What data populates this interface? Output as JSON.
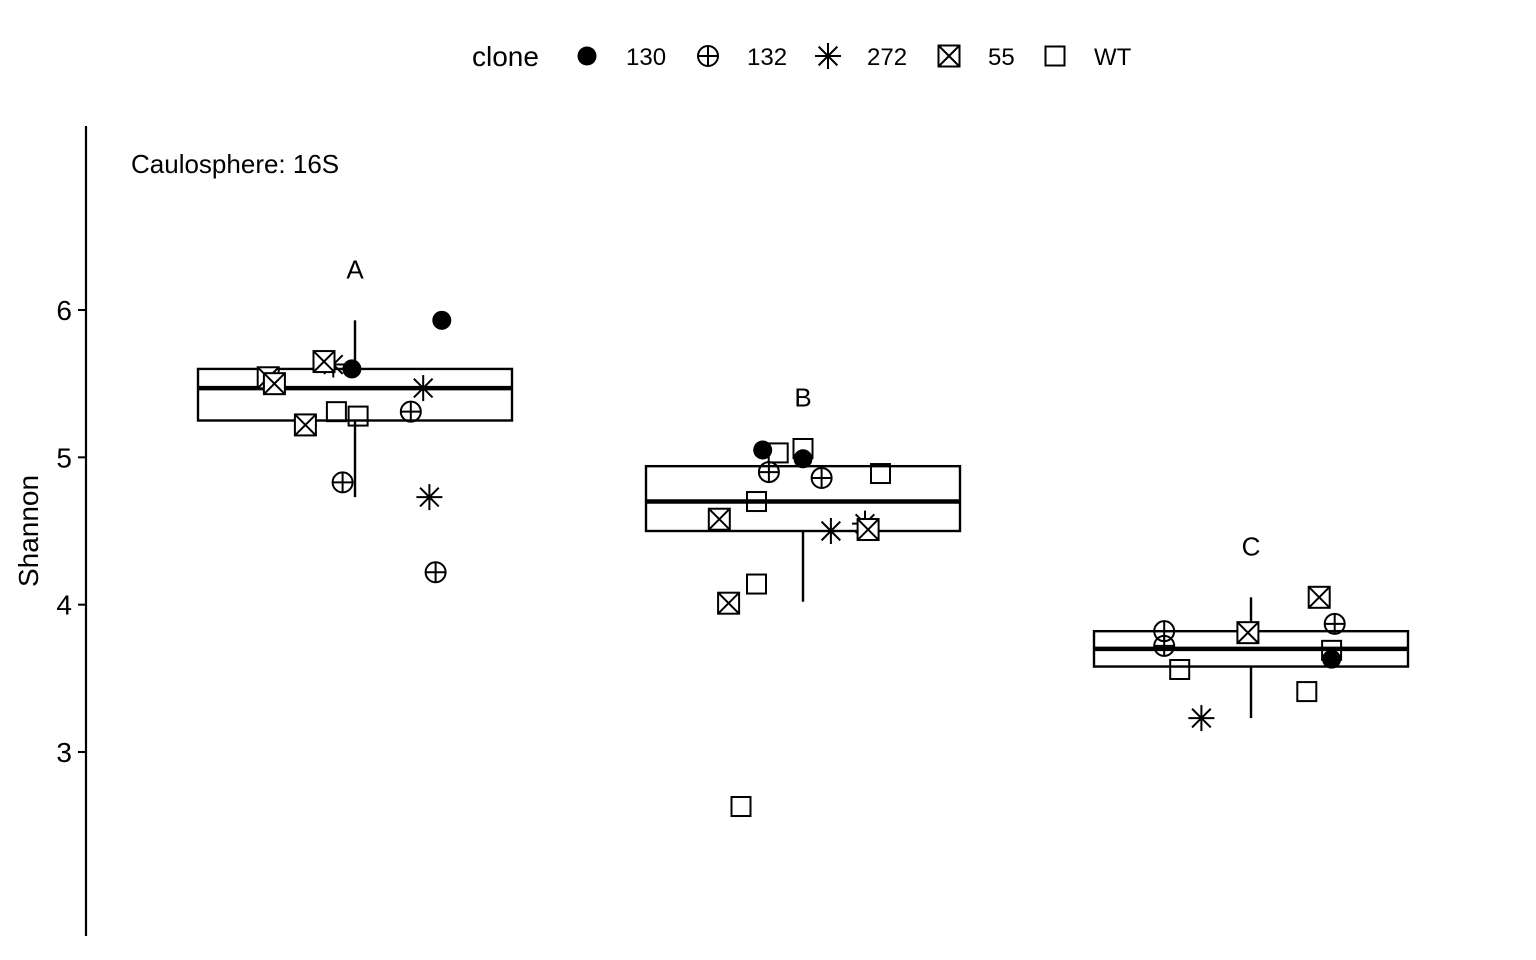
{
  "chart_data": {
    "type": "box",
    "title": "",
    "panel_label": "Caulosphere: 16S",
    "xlabel": "",
    "ylabel": "Shannon",
    "ylim": [
      1.9,
      7.2
    ],
    "yticks": [
      3,
      4,
      5,
      6
    ],
    "x_axis_shown": false,
    "grid": false,
    "legend": {
      "title": "clone",
      "position": "top",
      "entries": [
        {
          "label": "130",
          "shape": "filled-circle"
        },
        {
          "label": "132",
          "shape": "circle-plus"
        },
        {
          "label": "272",
          "shape": "asterisk"
        },
        {
          "label": "55",
          "shape": "square-x"
        },
        {
          "label": "WT",
          "shape": "open-square"
        }
      ]
    },
    "groups": [
      {
        "letter": "A",
        "box": {
          "q1": 5.25,
          "median": 5.47,
          "q3": 5.6,
          "whisker_low": 4.73,
          "whisker_high": 5.93
        },
        "points": [
          {
            "clone": "130",
            "y": 5.93,
            "jitter": 0.28
          },
          {
            "clone": "130",
            "y": 5.65,
            "jitter": -0.1
          },
          {
            "clone": "130",
            "y": 5.6,
            "jitter": -0.01
          },
          {
            "clone": "132",
            "y": 5.31,
            "jitter": 0.18
          },
          {
            "clone": "132",
            "y": 4.83,
            "jitter": -0.04
          },
          {
            "clone": "132",
            "y": 4.22,
            "jitter": 0.26
          },
          {
            "clone": "272",
            "y": 5.63,
            "jitter": -0.07
          },
          {
            "clone": "272",
            "y": 5.47,
            "jitter": 0.22
          },
          {
            "clone": "272",
            "y": 4.73,
            "jitter": 0.24
          },
          {
            "clone": "55",
            "y": 5.65,
            "jitter": -0.1
          },
          {
            "clone": "55",
            "y": 5.54,
            "jitter": -0.28
          },
          {
            "clone": "55",
            "y": 5.5,
            "jitter": -0.26
          },
          {
            "clone": "55",
            "y": 5.22,
            "jitter": -0.16
          },
          {
            "clone": "WT",
            "y": 5.31,
            "jitter": -0.06
          },
          {
            "clone": "WT",
            "y": 5.28,
            "jitter": 0.01
          }
        ]
      },
      {
        "letter": "B",
        "box": {
          "q1": 4.5,
          "median": 4.7,
          "q3": 4.94,
          "whisker_low": 4.02,
          "whisker_high": 4.94
        },
        "points": [
          {
            "clone": "130",
            "y": 5.05,
            "jitter": -0.13
          },
          {
            "clone": "130",
            "y": 4.99,
            "jitter": 0.0
          },
          {
            "clone": "132",
            "y": 4.9,
            "jitter": -0.11
          },
          {
            "clone": "132",
            "y": 4.86,
            "jitter": 0.06
          },
          {
            "clone": "272",
            "y": 4.55,
            "jitter": 0.2
          },
          {
            "clone": "272",
            "y": 4.5,
            "jitter": 0.09
          },
          {
            "clone": "55",
            "y": 4.58,
            "jitter": -0.27
          },
          {
            "clone": "55",
            "y": 4.51,
            "jitter": 0.21
          },
          {
            "clone": "55",
            "y": 4.01,
            "jitter": -0.24
          },
          {
            "clone": "WT",
            "y": 5.06,
            "jitter": 0.0
          },
          {
            "clone": "WT",
            "y": 5.03,
            "jitter": -0.08
          },
          {
            "clone": "WT",
            "y": 4.89,
            "jitter": 0.25
          },
          {
            "clone": "WT",
            "y": 4.7,
            "jitter": -0.15
          },
          {
            "clone": "WT",
            "y": 4.14,
            "jitter": -0.15
          },
          {
            "clone": "WT",
            "y": 2.63,
            "jitter": -0.2
          }
        ]
      },
      {
        "letter": "C",
        "box": {
          "q1": 3.58,
          "median": 3.7,
          "q3": 3.82,
          "whisker_low": 3.23,
          "whisker_high": 4.05
        },
        "points": [
          {
            "clone": "130",
            "y": 3.63,
            "jitter": 0.26
          },
          {
            "clone": "132",
            "y": 3.87,
            "jitter": 0.27
          },
          {
            "clone": "132",
            "y": 3.82,
            "jitter": -0.28
          },
          {
            "clone": "132",
            "y": 3.72,
            "jitter": -0.28
          },
          {
            "clone": "272",
            "y": 3.23,
            "jitter": -0.16
          },
          {
            "clone": "55",
            "y": 4.05,
            "jitter": 0.22
          },
          {
            "clone": "55",
            "y": 3.81,
            "jitter": -0.01
          },
          {
            "clone": "WT",
            "y": 3.69,
            "jitter": 0.26
          },
          {
            "clone": "WT",
            "y": 3.56,
            "jitter": -0.23
          },
          {
            "clone": "WT",
            "y": 3.41,
            "jitter": 0.18
          }
        ]
      }
    ]
  }
}
